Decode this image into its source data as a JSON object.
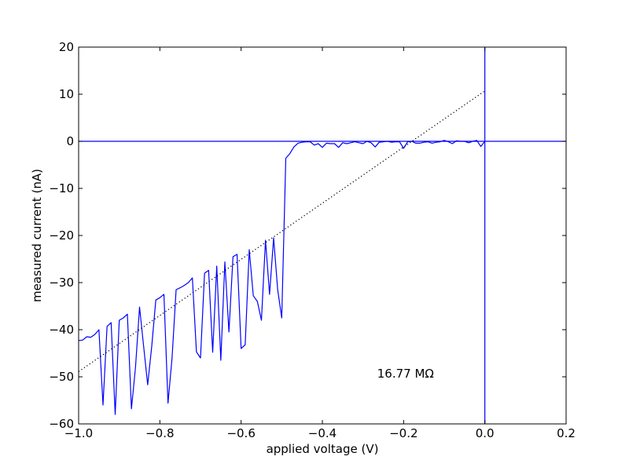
{
  "chart_data": {
    "type": "line",
    "title": "",
    "xlabel": "applied voltage (V)",
    "ylabel": "measured current (nA)",
    "xlim": [
      -1.0,
      0.2
    ],
    "ylim": [
      -60,
      20
    ],
    "xticks": [
      -1.0,
      -0.8,
      -0.6,
      -0.4,
      -0.2,
      0.0,
      0.2
    ],
    "yticks": [
      -60,
      -50,
      -40,
      -30,
      -20,
      -10,
      0,
      10,
      20
    ],
    "xtick_labels": [
      "−1.0",
      "−0.8",
      "−0.6",
      "−0.4",
      "−0.2",
      "0.0",
      "0.2"
    ],
    "ytick_labels": [
      "−60",
      "−50",
      "−40",
      "−30",
      "−20",
      "−10",
      "0",
      "10",
      "20"
    ],
    "grid": false,
    "series": [
      {
        "color": "#0000ff",
        "style": "solid",
        "x": [
          -1.0,
          -0.99,
          -0.98,
          -0.97,
          -0.96,
          -0.95,
          -0.94,
          -0.93,
          -0.92,
          -0.91,
          -0.9,
          -0.89,
          -0.88,
          -0.87,
          -0.86,
          -0.85,
          -0.84,
          -0.83,
          -0.82,
          -0.81,
          -0.8,
          -0.79,
          -0.78,
          -0.77,
          -0.76,
          -0.75,
          -0.74,
          -0.73,
          -0.72,
          -0.71,
          -0.7,
          -0.69,
          -0.68,
          -0.67,
          -0.66,
          -0.65,
          -0.64,
          -0.63,
          -0.62,
          -0.61,
          -0.6,
          -0.59,
          -0.58,
          -0.57,
          -0.56,
          -0.55,
          -0.54,
          -0.53,
          -0.52,
          -0.51,
          -0.5,
          -0.49,
          -0.48,
          -0.47,
          -0.46,
          -0.45,
          -0.44,
          -0.43,
          -0.42,
          -0.41,
          -0.4,
          -0.39,
          -0.38,
          -0.37,
          -0.36,
          -0.35,
          -0.34,
          -0.33,
          -0.32,
          -0.31,
          -0.3,
          -0.29,
          -0.28,
          -0.27,
          -0.26,
          -0.25,
          -0.24,
          -0.23,
          -0.22,
          -0.21,
          -0.2,
          -0.19,
          -0.18,
          -0.17,
          -0.16,
          -0.15,
          -0.14,
          -0.13,
          -0.12,
          -0.11,
          -0.1,
          -0.09,
          -0.08,
          -0.07,
          -0.06,
          -0.05,
          -0.04,
          -0.03,
          -0.02,
          -0.01,
          0.0
        ],
        "y": [
          -42.3,
          -42.2,
          -41.5,
          -41.6,
          -41.0,
          -40.0,
          -56.0,
          -39.3,
          -38.5,
          -58.0,
          -38.0,
          -37.5,
          -36.7,
          -56.8,
          -48.0,
          -35.2,
          -43.5,
          -51.7,
          -43.5,
          -33.7,
          -33.2,
          -32.5,
          -55.6,
          -46.0,
          -31.5,
          -31.1,
          -30.6,
          -30.0,
          -29.0,
          -44.7,
          -46.0,
          -28.0,
          -27.4,
          -44.8,
          -26.5,
          -46.5,
          -25.6,
          -40.5,
          -24.5,
          -24.0,
          -44.0,
          -43.2,
          -23.0,
          -32.8,
          -34.0,
          -38.0,
          -21.0,
          -32.5,
          -20.5,
          -31.5,
          -37.5,
          -3.6,
          -2.6,
          -1.2,
          -0.4,
          -0.2,
          -0.1,
          -0.1,
          -0.8,
          -0.5,
          -1.3,
          -0.4,
          -0.5,
          -0.5,
          -1.3,
          -0.3,
          -0.5,
          -0.3,
          -0.1,
          -0.3,
          -0.5,
          0.0,
          -0.3,
          -1.2,
          -0.2,
          -0.1,
          0.0,
          -0.2,
          -0.1,
          -0.1,
          -1.5,
          -0.1,
          0.0,
          -0.4,
          -0.4,
          -0.2,
          -0.1,
          -0.4,
          -0.2,
          -0.1,
          0.2,
          -0.1,
          -0.5,
          0.1,
          0.0,
          0.0,
          -0.3,
          0.0,
          0.2,
          -1.1,
          0.0
        ]
      },
      {
        "color": "#000000",
        "style": "dotted",
        "x": [
          -1.0,
          0.0
        ],
        "y": [
          -48.9,
          10.7
        ]
      }
    ],
    "reference_lines": [
      {
        "orientation": "horizontal",
        "value": 0,
        "color": "#0000ff"
      },
      {
        "orientation": "vertical",
        "value": 0,
        "color": "#0000ff"
      }
    ],
    "annotations": [
      {
        "text": "16.77 MΩ",
        "x": -0.265,
        "y": -49.3
      }
    ]
  }
}
